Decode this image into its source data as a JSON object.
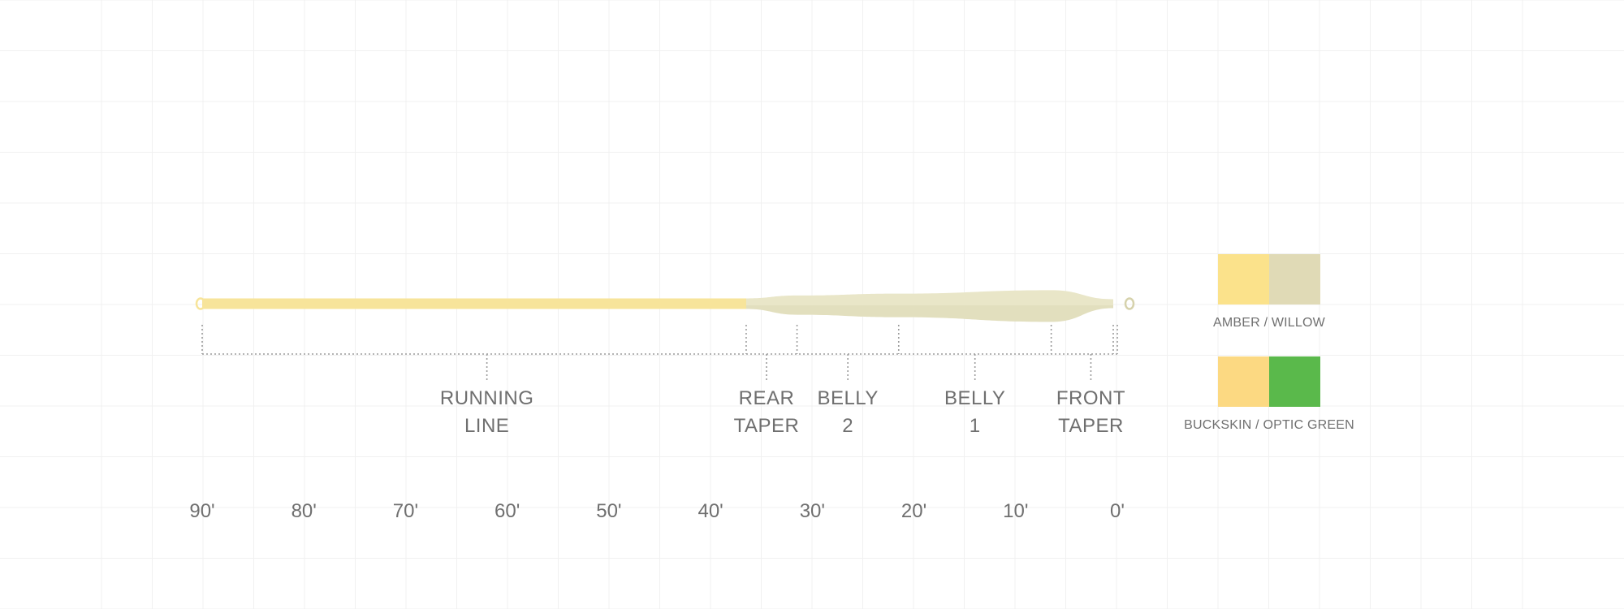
{
  "colors": {
    "background": "#ffffff",
    "grid": "#f1f1f1",
    "running_line": "#f7e49a",
    "head": "#e9e6c8",
    "head_dark": "#d6d2ac",
    "dotted": "#9c9c9c",
    "text": "#6f6f6f"
  },
  "scale": {
    "unit": "ft",
    "ticks": [
      {
        "value": 90,
        "label": "90'"
      },
      {
        "value": 80,
        "label": "80'"
      },
      {
        "value": 70,
        "label": "70'"
      },
      {
        "value": 60,
        "label": "60'"
      },
      {
        "value": 50,
        "label": "50'"
      },
      {
        "value": 40,
        "label": "40'"
      },
      {
        "value": 30,
        "label": "30'"
      },
      {
        "value": 20,
        "label": "20'"
      },
      {
        "value": 10,
        "label": "10'"
      },
      {
        "value": 0,
        "label": "0'"
      }
    ]
  },
  "line_profile": {
    "running_line": {
      "from": 90,
      "to": 36.5
    },
    "head_profile": [
      {
        "ft": 36.5,
        "thickness": 1.0
      },
      {
        "ft": 31.5,
        "thickness": 1.55
      },
      {
        "ft": 21.5,
        "thickness": 1.9
      },
      {
        "ft": 6.5,
        "thickness": 2.55
      },
      {
        "ft": 0.4,
        "thickness": 0.85
      }
    ],
    "markers": [
      90,
      36.5,
      31.5,
      21.5,
      6.5,
      0.4,
      0
    ]
  },
  "sections": [
    {
      "lines": [
        "RUNNING",
        "LINE"
      ],
      "center": 62.0
    },
    {
      "lines": [
        "REAR",
        "TAPER"
      ],
      "center": 34.5
    },
    {
      "lines": [
        "BELLY",
        "2"
      ],
      "center": 26.5
    },
    {
      "lines": [
        "BELLY",
        "1"
      ],
      "center": 14.0
    },
    {
      "lines": [
        "FRONT",
        "TAPER"
      ],
      "center": 2.6
    }
  ],
  "swatches": [
    {
      "label": "AMBER / WILLOW",
      "colors": [
        "#fbe28b",
        "#e0dab6"
      ]
    },
    {
      "label": "BUCKSKIN / OPTIC GREEN",
      "colors": [
        "#fcd982",
        "#5ab94b"
      ]
    }
  ]
}
